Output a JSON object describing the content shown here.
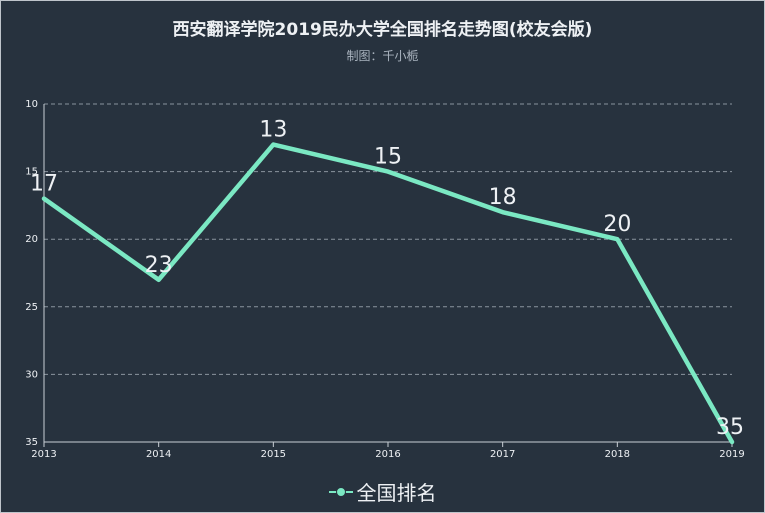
{
  "chart_data": {
    "type": "line",
    "title": "西安翻译学院2019民办大学全国排名走势图(校友会版)",
    "subtitle": "制图：千小栀",
    "categories": [
      "2013",
      "2014",
      "2015",
      "2016",
      "2017",
      "2018",
      "2019"
    ],
    "series": [
      {
        "name": "全国排名",
        "values": [
          17,
          23,
          13,
          15,
          18,
          20,
          35
        ]
      }
    ],
    "yaxis": {
      "min": 10,
      "max": 35,
      "inverted": true,
      "ticks": [
        10,
        15,
        20,
        25,
        30,
        35
      ]
    },
    "grid": "horizontal-dashed",
    "legend": "bottom-center",
    "colors": {
      "line": "#7be8c3",
      "background": "#27323e",
      "axis": "#c9d0d6",
      "grid": "#8a949e",
      "text": "#eef1f4"
    }
  }
}
